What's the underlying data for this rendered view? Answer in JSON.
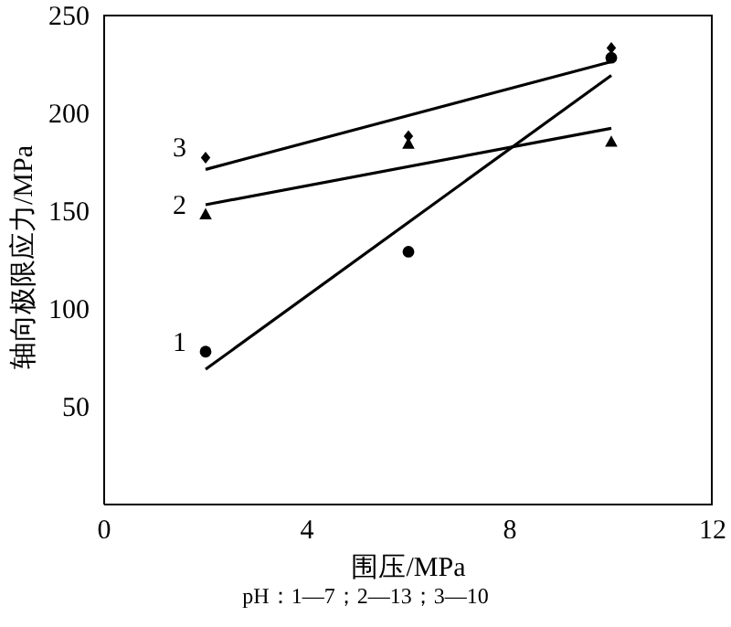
{
  "chart_data": {
    "type": "scatter",
    "xlabel": "围压/MPa",
    "ylabel": "轴向极限应力/MPa",
    "annotations": [
      "pH：1—7；2—13；3—10"
    ],
    "xlim": [
      0,
      12
    ],
    "xticks": [
      0,
      4,
      8,
      12
    ],
    "ylim": [
      0,
      250
    ],
    "yticks": [
      50,
      100,
      150,
      200,
      250
    ],
    "series": [
      {
        "name": "1",
        "color": "#000000",
        "marker": "circle",
        "x": [
          2,
          6,
          10
        ],
        "values": [
          78,
          129,
          228
        ]
      },
      {
        "name": "2",
        "color": "#000000",
        "marker": "triangle",
        "x": [
          2,
          6,
          10
        ],
        "values": [
          148,
          184,
          185
        ]
      },
      {
        "name": "3",
        "color": "#000000",
        "marker": "diamond",
        "x": [
          2,
          6,
          10
        ],
        "values": [
          177,
          188,
          233
        ]
      },
      {
        "type": "line",
        "color": "#000000",
        "marker": "none",
        "x": [
          2,
          10
        ],
        "values": [
          69,
          219
        ]
      },
      {
        "type": "line",
        "color": "#000000",
        "marker": "none",
        "x": [
          2,
          10
        ],
        "values": [
          153,
          192
        ]
      },
      {
        "type": "line",
        "color": "#000000",
        "marker": "none",
        "x": [
          2,
          10
        ],
        "values": [
          171,
          226
        ]
      }
    ]
  }
}
